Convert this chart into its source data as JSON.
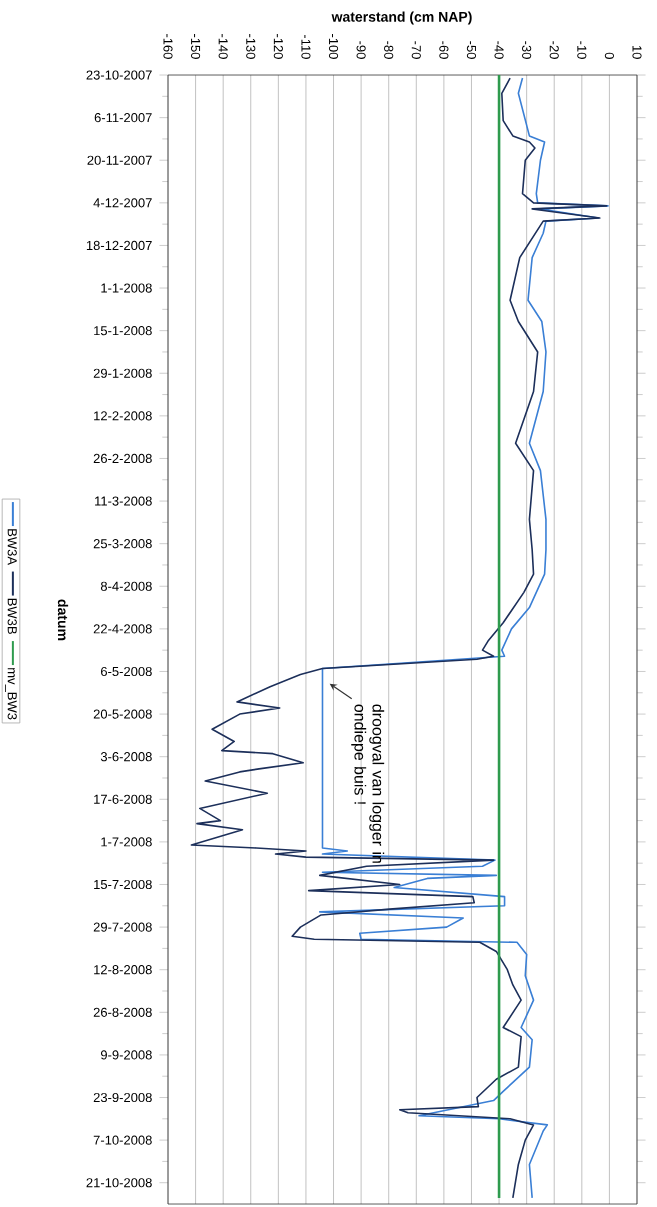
{
  "chart_data": {
    "type": "line",
    "orientation": "horizontal",
    "xlabel": "waterstand (cm NAP)",
    "ylabel": "datum",
    "ylim": [
      "2008-10-28",
      "2007-10-23"
    ],
    "yticks": [
      {
        "value": "2007-10-23",
        "label": "23-10-2007"
      },
      {
        "value": "2007-11-06",
        "label": "6-11-2007"
      },
      {
        "value": "2007-11-20",
        "label": "20-11-2007"
      },
      {
        "value": "2007-12-04",
        "label": "4-12-2007"
      },
      {
        "value": "2007-12-18",
        "label": "18-12-2007"
      },
      {
        "value": "2008-01-01",
        "label": "1-1-2008"
      },
      {
        "value": "2008-01-15",
        "label": "15-1-2008"
      },
      {
        "value": "2008-01-29",
        "label": "29-1-2008"
      },
      {
        "value": "2008-02-12",
        "label": "12-2-2008"
      },
      {
        "value": "2008-02-26",
        "label": "26-2-2008"
      },
      {
        "value": "2008-03-11",
        "label": "11-3-2008"
      },
      {
        "value": "2008-03-25",
        "label": "25-3-2008"
      },
      {
        "value": "2008-04-08",
        "label": "8-4-2008"
      },
      {
        "value": "2008-04-22",
        "label": "22-4-2008"
      },
      {
        "value": "2008-05-06",
        "label": "6-5-2008"
      },
      {
        "value": "2008-05-20",
        "label": "20-5-2008"
      },
      {
        "value": "2008-06-03",
        "label": "3-6-2008"
      },
      {
        "value": "2008-06-17",
        "label": "17-6-2008"
      },
      {
        "value": "2008-07-01",
        "label": "1-7-2008"
      },
      {
        "value": "2008-07-15",
        "label": "15-7-2008"
      },
      {
        "value": "2008-07-29",
        "label": "29-7-2008"
      },
      {
        "value": "2008-08-12",
        "label": "12-8-2008"
      },
      {
        "value": "2008-08-26",
        "label": "26-8-2008"
      },
      {
        "value": "2008-09-09",
        "label": "9-9-2008"
      },
      {
        "value": "2008-09-23",
        "label": "23-9-2008"
      },
      {
        "value": "2008-10-07",
        "label": "7-10-2008"
      },
      {
        "value": "2008-10-21",
        "label": "21-10-2008"
      }
    ],
    "xlim": [
      -160,
      10
    ],
    "xticks": [
      -160,
      -150,
      -140,
      -130,
      -120,
      -110,
      -100,
      -90,
      -80,
      -70,
      -60,
      -50,
      -40,
      -30,
      -20,
      -10,
      0,
      10
    ],
    "grid": "x",
    "legend": "left",
    "line_style": "solid",
    "series": [
      {
        "name": "BW3A",
        "color": "#3a7fd5",
        "x": [
          "2007-10-24",
          "2007-10-29",
          "2007-11-12",
          "2007-11-14",
          "2007-11-20",
          "2007-12-01",
          "2007-12-04",
          "2007-12-05",
          "2007-12-06",
          "2007-12-09",
          "2007-12-10",
          "2007-12-14",
          "2007-12-22",
          "2008-01-05",
          "2008-01-12",
          "2008-01-22",
          "2008-02-04",
          "2008-02-21",
          "2008-03-01",
          "2008-03-17",
          "2008-03-27",
          "2008-04-04",
          "2008-04-15",
          "2008-04-22",
          "2008-04-29",
          "2008-05-01",
          "2008-05-05",
          "2008-06-01",
          "2008-07-03",
          "2008-07-04",
          "2008-07-05",
          "2008-07-07",
          "2008-07-09",
          "2008-07-11",
          "2008-07-12",
          "2008-07-13",
          "2008-07-16",
          "2008-07-19",
          "2008-07-22",
          "2008-07-24",
          "2008-07-26",
          "2008-07-29",
          "2008-07-31",
          "2008-08-02",
          "2008-08-03",
          "2008-08-07",
          "2008-08-14",
          "2008-08-22",
          "2008-08-31",
          "2008-09-04",
          "2008-09-13",
          "2008-09-21",
          "2008-09-24",
          "2008-09-29",
          "2008-09-30",
          "2008-10-02",
          "2008-10-04",
          "2008-10-15",
          "2008-10-26"
        ],
        "values": [
          -31.5,
          -33,
          -29,
          -23.5,
          -25,
          -26.5,
          -26,
          -0.5,
          -25,
          -4,
          -23,
          -24,
          -28,
          -29.5,
          -24.5,
          -23,
          -24,
          -29,
          -25,
          -23,
          -23,
          -23.5,
          -29,
          -35.5,
          -39,
          -38,
          -104,
          -104,
          -104,
          -95,
          -104,
          -41.5,
          -46,
          -104,
          -41,
          -66,
          -78,
          -38,
          -38,
          -105,
          -53,
          -59,
          -90.5,
          -90,
          -33.5,
          -30,
          -30.5,
          -27.5,
          -32,
          -28,
          -29,
          -38.5,
          -42,
          -69,
          -40,
          -22.5,
          -24,
          -29,
          -28
        ]
      },
      {
        "name": "BW3B",
        "color": "#1c2f5a",
        "x": [
          "2007-10-24",
          "2007-10-29",
          "2007-11-07",
          "2007-11-12",
          "2007-11-14",
          "2007-11-16",
          "2007-11-20",
          "2007-12-01",
          "2007-12-04",
          "2007-12-05",
          "2007-12-06",
          "2007-12-09",
          "2007-12-10",
          "2007-12-22",
          "2008-01-05",
          "2008-01-12",
          "2008-01-22",
          "2008-02-04",
          "2008-02-21",
          "2008-03-01",
          "2008-03-17",
          "2008-03-27",
          "2008-04-04",
          "2008-04-10",
          "2008-04-20",
          "2008-04-26",
          "2008-04-29",
          "2008-05-01",
          "2008-05-02",
          "2008-05-05",
          "2008-05-07",
          "2008-05-11",
          "2008-05-16",
          "2008-05-18",
          "2008-05-20",
          "2008-05-25",
          "2008-05-29",
          "2008-06-01",
          "2008-06-02",
          "2008-06-05",
          "2008-06-07",
          "2008-06-08",
          "2008-06-11",
          "2008-06-15",
          "2008-06-20",
          "2008-06-24",
          "2008-06-25",
          "2008-06-27",
          "2008-07-02",
          "2008-07-03",
          "2008-07-04",
          "2008-07-05",
          "2008-07-06",
          "2008-07-07",
          "2008-07-09",
          "2008-07-12",
          "2008-07-15",
          "2008-07-17",
          "2008-07-19",
          "2008-07-21",
          "2008-07-23",
          "2008-07-25",
          "2008-07-29",
          "2008-08-01",
          "2008-08-02",
          "2008-08-03",
          "2008-08-06",
          "2008-08-12",
          "2008-08-17",
          "2008-08-22",
          "2008-08-31",
          "2008-09-03",
          "2008-09-13",
          "2008-09-17",
          "2008-09-23",
          "2008-09-26",
          "2008-09-27",
          "2008-09-28",
          "2008-09-30",
          "2008-10-02",
          "2008-10-07",
          "2008-10-15",
          "2008-10-26"
        ],
        "values": [
          -36,
          -39,
          -38.5,
          -35,
          -29,
          -27,
          -30.5,
          -31.5,
          -27.5,
          -1,
          -28,
          -3.5,
          -24,
          -32.5,
          -36,
          -33,
          -26,
          -27.5,
          -34,
          -27.5,
          -29,
          -28,
          -27.5,
          -31,
          -38.5,
          -44,
          -46,
          -42,
          -48,
          -104,
          -112,
          -123,
          -135,
          -119.5,
          -134,
          -144,
          -136,
          -140.5,
          -122,
          -111,
          -127,
          -134,
          -146.5,
          -124,
          -148.5,
          -141,
          -149.5,
          -133,
          -151.5,
          -128,
          -110,
          -121,
          -110,
          -42,
          -88,
          -105,
          -76,
          -109,
          -49.5,
          -49,
          -78.5,
          -104.5,
          -112,
          -115,
          -107,
          -47,
          -41,
          -37,
          -35,
          -32,
          -38.5,
          -32,
          -33,
          -41,
          -48,
          -47.5,
          -76,
          -73,
          -36,
          -27.5,
          -30.5,
          -33,
          -35
        ]
      },
      {
        "name": "mv_BW3",
        "color": "#2e9b4e",
        "x": [
          "2007-10-23",
          "2008-10-26"
        ],
        "values": [
          -40,
          -40
        ]
      }
    ],
    "annotations": [
      {
        "text": "droogval van logger in ondiepe buis !",
        "x": -104,
        "y": "2008-05-10"
      }
    ]
  }
}
